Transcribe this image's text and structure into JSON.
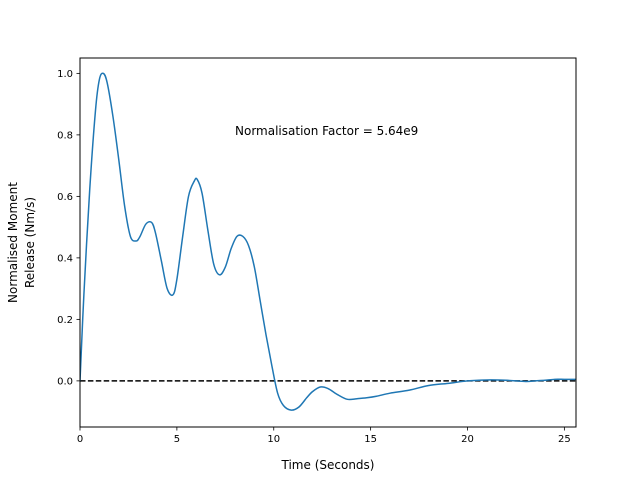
{
  "chart_data": {
    "type": "line",
    "title": "",
    "xlabel": "Time (Seconds)",
    "ylabel_lines": [
      "Normalised Moment",
      "Release (Nm/s)"
    ],
    "xlim": [
      0,
      25.6
    ],
    "ylim": [
      -0.15,
      1.05
    ],
    "x_ticks": [
      0,
      5,
      10,
      15,
      20,
      25
    ],
    "y_ticks": [
      0.0,
      0.2,
      0.4,
      0.6,
      0.8,
      1.0
    ],
    "x_tick_labels": [
      "0",
      "5",
      "10",
      "15",
      "20",
      "25"
    ],
    "y_tick_labels": [
      "0.0",
      "0.2",
      "0.4",
      "0.6",
      "0.8",
      "1.0"
    ],
    "annotation": "Normalisation Factor = 5.64e9",
    "reference_line": {
      "y": 0.0,
      "style": "dashed",
      "color": "#000000"
    },
    "grid": false,
    "series": [
      {
        "color": "#1f77b4",
        "x": [
          0.0,
          0.2,
          0.5,
          0.8,
          1.0,
          1.2,
          1.4,
          1.7,
          2.0,
          2.3,
          2.6,
          2.9,
          3.1,
          3.4,
          3.7,
          3.9,
          4.2,
          4.5,
          4.8,
          5.0,
          5.3,
          5.6,
          5.9,
          6.05,
          6.3,
          6.6,
          6.9,
          7.2,
          7.5,
          7.8,
          8.1,
          8.4,
          8.7,
          9.0,
          9.3,
          9.6,
          9.9,
          10.2,
          10.5,
          10.9,
          11.3,
          11.7,
          12.0,
          12.4,
          12.8,
          13.3,
          13.8,
          14.3,
          14.8,
          15.3,
          16.0,
          17.0,
          18.0,
          19.0,
          20.0,
          21.0,
          22.0,
          23.0,
          23.5,
          24.0,
          24.5,
          25.0,
          25.6
        ],
        "y": [
          0.0,
          0.28,
          0.62,
          0.88,
          0.98,
          1.0,
          0.97,
          0.86,
          0.72,
          0.57,
          0.47,
          0.455,
          0.47,
          0.51,
          0.515,
          0.48,
          0.39,
          0.3,
          0.28,
          0.33,
          0.47,
          0.6,
          0.65,
          0.655,
          0.61,
          0.49,
          0.38,
          0.345,
          0.37,
          0.43,
          0.47,
          0.47,
          0.44,
          0.37,
          0.26,
          0.15,
          0.05,
          -0.04,
          -0.08,
          -0.095,
          -0.085,
          -0.055,
          -0.035,
          -0.02,
          -0.025,
          -0.045,
          -0.06,
          -0.058,
          -0.055,
          -0.05,
          -0.04,
          -0.03,
          -0.015,
          -0.008,
          0.0,
          0.003,
          0.002,
          -0.002,
          0.0,
          0.002,
          0.005,
          0.005,
          0.005
        ]
      }
    ]
  }
}
